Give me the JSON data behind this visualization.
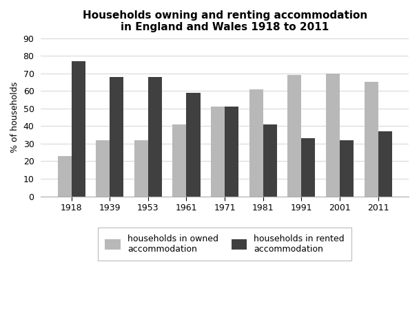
{
  "title": "Households owning and renting accommodation\nin England and Wales 1918 to 2011",
  "ylabel": "% of households",
  "years": [
    "1918",
    "1939",
    "1953",
    "1961",
    "1971",
    "1981",
    "1991",
    "2001",
    "2011"
  ],
  "owned": [
    23,
    32,
    32,
    41,
    51,
    61,
    69,
    70,
    65
  ],
  "rented": [
    77,
    68,
    68,
    59,
    51,
    41,
    33,
    32,
    37
  ],
  "owned_color": "#b8b8b8",
  "rented_color": "#404040",
  "ylim": [
    0,
    90
  ],
  "yticks": [
    0,
    10,
    20,
    30,
    40,
    50,
    60,
    70,
    80,
    90
  ],
  "legend_owned": "households in owned\naccommodation",
  "legend_rented": "households in rented\naccommodation",
  "bar_width": 0.36,
  "title_fontsize": 11,
  "label_fontsize": 9,
  "tick_fontsize": 9
}
